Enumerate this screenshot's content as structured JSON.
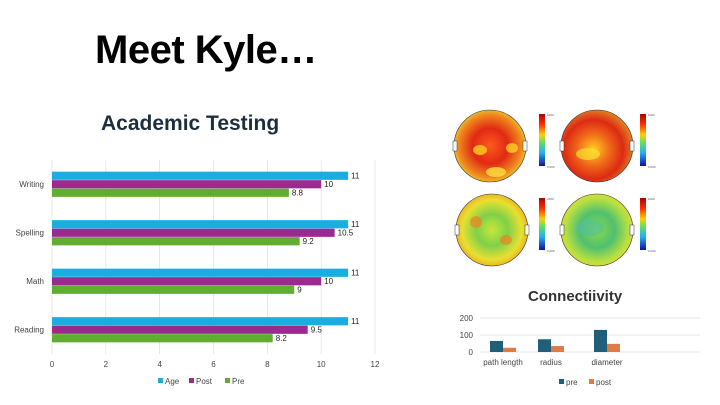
{
  "slide": {
    "title": "Meet Kyle…"
  },
  "colors": {
    "age": "#18aee0",
    "post": "#9a2a8f",
    "pre": "#5fae32",
    "conn_pre": "#1f5f7a",
    "conn_post": "#e07b45"
  },
  "chart_data": [
    {
      "type": "bar",
      "orientation": "horizontal",
      "title": "Academic Testing",
      "categories": [
        "Writing",
        "Spelling",
        "Math",
        "Reading"
      ],
      "series": [
        {
          "name": "Age",
          "values": [
            11,
            11,
            11,
            11
          ]
        },
        {
          "name": "Post",
          "values": [
            10,
            10.5,
            10,
            9.5
          ]
        },
        {
          "name": "Pre",
          "values": [
            8.8,
            9.2,
            9,
            8.2
          ]
        }
      ],
      "xlim": [
        0,
        12
      ],
      "xticks": [
        "0",
        "2",
        "4",
        "6",
        "8",
        "10",
        "12"
      ],
      "data_labels": [
        [
          "11",
          "10",
          "8.8"
        ],
        [
          "11",
          "10.5",
          "9.2"
        ],
        [
          "11",
          "10",
          "9"
        ],
        [
          "11",
          "9.5",
          "8.2"
        ]
      ],
      "legend": "bottom",
      "grid": "vertical"
    },
    {
      "type": "bar",
      "title": "Connectiivity",
      "categories": [
        "path length",
        "radius",
        "diameter"
      ],
      "series": [
        {
          "name": "pre",
          "values": [
            65,
            75,
            130
          ]
        },
        {
          "name": "post",
          "values": [
            25,
            35,
            48
          ]
        }
      ],
      "ylim": [
        0,
        200
      ],
      "yticks": [
        "0",
        "100",
        "200"
      ],
      "legend": "bottom",
      "grid": "horizontal"
    }
  ],
  "brain_maps": {
    "scale_top": "1000",
    "scale_bottom": "0.000"
  }
}
